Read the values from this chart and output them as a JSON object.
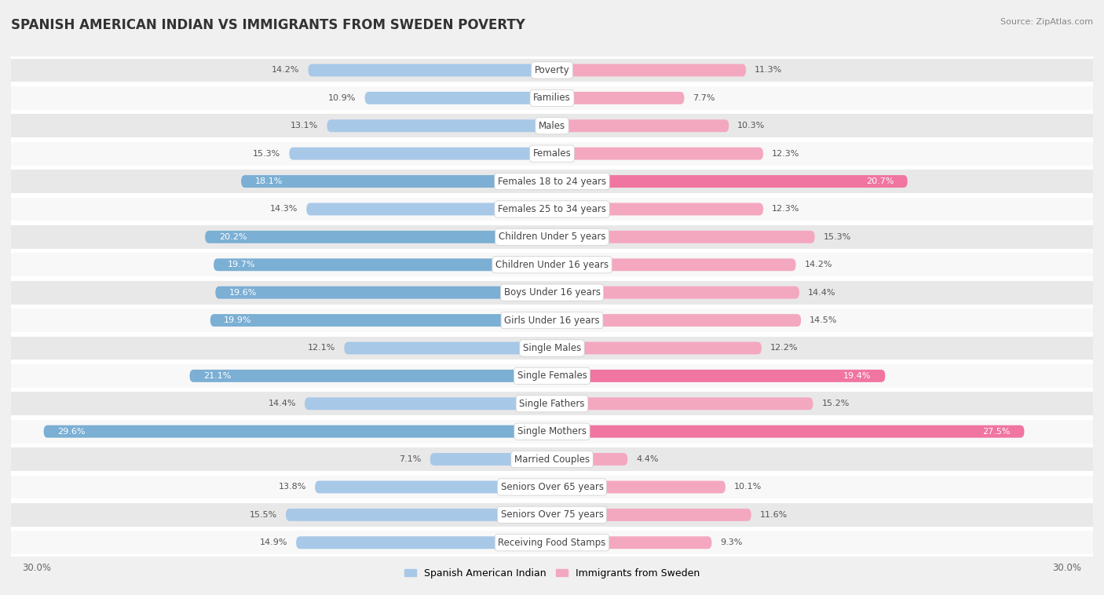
{
  "title": "SPANISH AMERICAN INDIAN VS IMMIGRANTS FROM SWEDEN POVERTY",
  "source": "Source: ZipAtlas.com",
  "categories": [
    "Poverty",
    "Families",
    "Males",
    "Females",
    "Females 18 to 24 years",
    "Females 25 to 34 years",
    "Children Under 5 years",
    "Children Under 16 years",
    "Boys Under 16 years",
    "Girls Under 16 years",
    "Single Males",
    "Single Females",
    "Single Fathers",
    "Single Mothers",
    "Married Couples",
    "Seniors Over 65 years",
    "Seniors Over 75 years",
    "Receiving Food Stamps"
  ],
  "left_values": [
    14.2,
    10.9,
    13.1,
    15.3,
    18.1,
    14.3,
    20.2,
    19.7,
    19.6,
    19.9,
    12.1,
    21.1,
    14.4,
    29.6,
    7.1,
    13.8,
    15.5,
    14.9
  ],
  "right_values": [
    11.3,
    7.7,
    10.3,
    12.3,
    20.7,
    12.3,
    15.3,
    14.2,
    14.4,
    14.5,
    12.2,
    19.4,
    15.2,
    27.5,
    4.4,
    10.1,
    11.6,
    9.3
  ],
  "left_color_normal": "#a8c8e8",
  "left_color_highlight": "#7bafd4",
  "right_color_normal": "#f4a8c0",
  "right_color_highlight": "#f075a0",
  "highlight_threshold": 17.0,
  "max_val": 30.0,
  "bar_height": 0.45,
  "background_color": "#f0f0f0",
  "row_color_odd": "#e8e8e8",
  "row_color_even": "#f8f8f8",
  "row_border_color": "#ffffff",
  "legend_left": "Spanish American Indian",
  "legend_right": "Immigrants from Sweden",
  "title_fontsize": 12,
  "source_fontsize": 8,
  "label_fontsize": 8.5,
  "value_fontsize": 8
}
